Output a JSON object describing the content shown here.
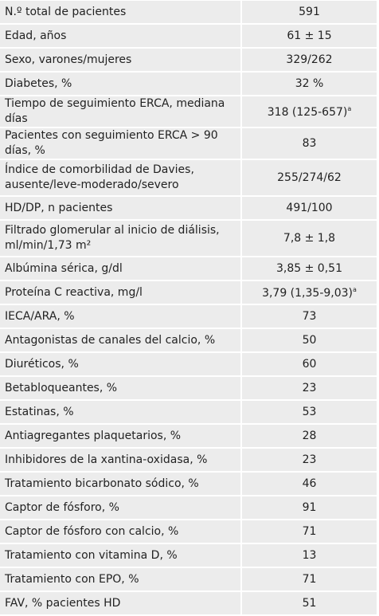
{
  "table": {
    "rows": [
      {
        "label": "N.º total de pacientes",
        "value": "591"
      },
      {
        "label": "Edad, años",
        "value": "61 ± 15"
      },
      {
        "label": "Sexo, varones/mujeres",
        "value": "329/262"
      },
      {
        "label": "Diabetes, %",
        "value": "32 %"
      },
      {
        "label": "Tiempo de seguimiento ERCA, mediana días",
        "value": "318 (125-657)",
        "note": "a"
      },
      {
        "label": "Pacientes con seguimiento ERCA > 90 días, %",
        "value": "83"
      },
      {
        "label": "Índice de comorbilidad de Davies,\nausente/leve-moderado/severo",
        "value": "255/274/62"
      },
      {
        "label": "HD/DP, n pacientes",
        "value": "491/100"
      },
      {
        "label": "Filtrado glomerular al inicio de diálisis,\nml/min/1,73 m²",
        "value": "7,8 ± 1,8"
      },
      {
        "label": "Albúmina sérica, g/dl",
        "value": "3,85 ± 0,51"
      },
      {
        "label": "Proteína C reactiva, mg/l",
        "value": "3,79 (1,35-9,03)",
        "note": "a"
      },
      {
        "label": "IECA/ARA, %",
        "value": "73"
      },
      {
        "label": "Antagonistas de canales del calcio, %",
        "value": "50"
      },
      {
        "label": "Diuréticos, %",
        "value": "60"
      },
      {
        "label": "Betabloqueantes, %",
        "value": "23"
      },
      {
        "label": "Estatinas, %",
        "value": "53"
      },
      {
        "label": "Antiagregantes plaquetarios, %",
        "value": "28"
      },
      {
        "label": "Inhibidores de la xantina-oxidasa, %",
        "value": "23"
      },
      {
        "label": "Tratamiento bicarbonato sódico, %",
        "value": "46"
      },
      {
        "label": "Captor de fósforo, %",
        "value": "91"
      },
      {
        "label": "Captor de fósforo con calcio, %",
        "value": "71"
      },
      {
        "label": "Tratamiento con vitamina D, %",
        "value": "13"
      },
      {
        "label": "Tratamiento con EPO, %",
        "value": "71"
      },
      {
        "label": "FAV, % pacientes HD",
        "value": "51"
      }
    ]
  }
}
